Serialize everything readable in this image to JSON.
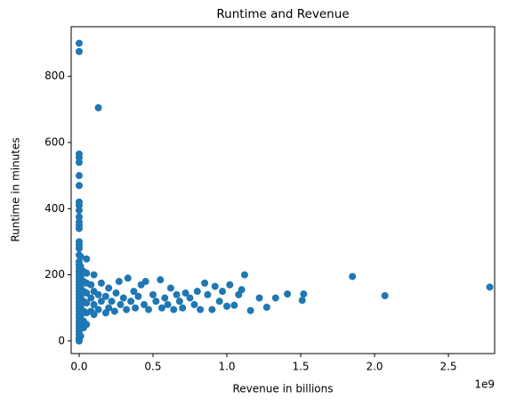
{
  "chart_data": {
    "type": "scatter",
    "title": "Runtime and Revenue",
    "x_label": "Revenue in billions",
    "y_label": "Runtime in minutes",
    "x_offset_label": "1e9",
    "color": "#1f77b4",
    "xlim": [
      -0.054,
      2.813
    ],
    "ylim": [
      -38,
      950
    ],
    "xticks": [
      {
        "value": 0,
        "label": "0.0"
      },
      0.5,
      {
        "value": 1,
        "label": "1.0"
      },
      1.5,
      {
        "value": 2,
        "label": "2.0"
      },
      2.5
    ],
    "yticks": [
      0,
      200,
      400,
      600,
      800
    ],
    "x": [
      0,
      0,
      0,
      0,
      0,
      0,
      0,
      0,
      0,
      0,
      0,
      0,
      0,
      0,
      0,
      0,
      0,
      0,
      0,
      0,
      0,
      0,
      0,
      0,
      0,
      0,
      0,
      0,
      0,
      0,
      0,
      0,
      0,
      0,
      0,
      0,
      0,
      0,
      0,
      0,
      0,
      0,
      0,
      0,
      0.01,
      0.01,
      0.01,
      0.01,
      0.01,
      0.01,
      0.01,
      0.01,
      0.01,
      0.03,
      0.03,
      0.03,
      0.03,
      0.03,
      0.03,
      0.03,
      0.05,
      0.05,
      0.05,
      0.05,
      0.05,
      0.05,
      0.05,
      0.08,
      0.08,
      0.08,
      0.1,
      0.1,
      0.1,
      0.1,
      0.13,
      0.13,
      0.13,
      0.15,
      0.15,
      0.18,
      0.18,
      0.2,
      0.2,
      0.22,
      0.24,
      0.25,
      0.27,
      0.28,
      0.3,
      0.32,
      0.33,
      0.35,
      0.37,
      0.38,
      0.4,
      0.42,
      0.44,
      0.45,
      0.47,
      0.5,
      0.52,
      0.55,
      0.56,
      0.58,
      0.6,
      0.62,
      0.64,
      0.66,
      0.68,
      0.7,
      0.72,
      0.75,
      0.78,
      0.8,
      0.82,
      0.85,
      0.87,
      0.9,
      0.92,
      0.95,
      0.97,
      1.0,
      1.02,
      1.05,
      1.08,
      1.1,
      1.12,
      1.16,
      1.22,
      1.27,
      1.33,
      1.41,
      1.51,
      1.52,
      1.85,
      2.07,
      2.78
    ],
    "values": [
      0,
      5,
      10,
      20,
      30,
      40,
      50,
      60,
      70,
      80,
      90,
      100,
      110,
      120,
      130,
      140,
      150,
      160,
      170,
      180,
      190,
      200,
      210,
      220,
      230,
      240,
      260,
      280,
      290,
      300,
      340,
      350,
      360,
      375,
      395,
      410,
      420,
      470,
      500,
      540,
      555,
      565,
      875,
      900,
      15,
      45,
      75,
      105,
      135,
      165,
      195,
      225,
      255,
      40,
      60,
      90,
      120,
      150,
      180,
      210,
      50,
      85,
      115,
      145,
      175,
      205,
      248,
      90,
      130,
      170,
      80,
      110,
      150,
      200,
      705,
      95,
      140,
      120,
      175,
      85,
      135,
      100,
      160,
      120,
      90,
      145,
      180,
      110,
      130,
      95,
      190,
      120,
      150,
      100,
      135,
      170,
      110,
      180,
      95,
      140,
      120,
      185,
      100,
      130,
      110,
      160,
      95,
      140,
      120,
      100,
      145,
      130,
      110,
      150,
      95,
      175,
      140,
      95,
      165,
      120,
      150,
      105,
      170,
      108,
      140,
      155,
      200,
      92,
      130,
      102,
      130,
      142,
      123,
      142,
      195,
      137,
      163
    ]
  }
}
